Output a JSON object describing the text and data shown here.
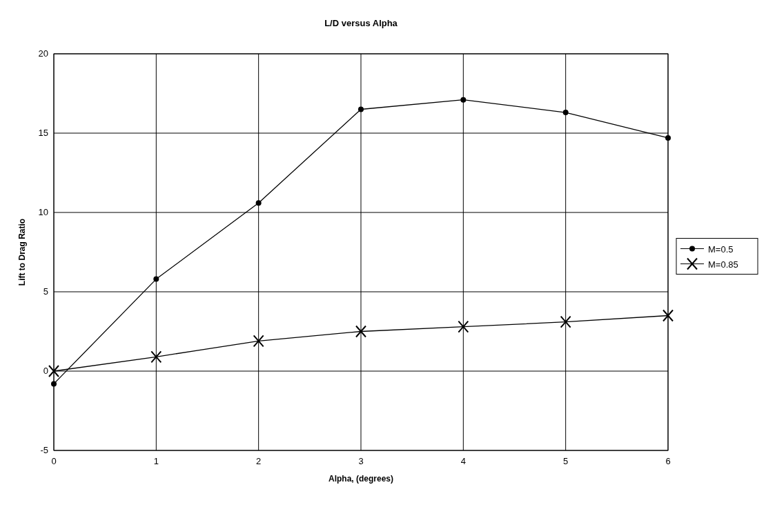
{
  "chart_data": {
    "type": "line",
    "title": "L/D versus Alpha",
    "xlabel": "Alpha, (degrees)",
    "ylabel": "Lift to Drag Ratio",
    "x": [
      0,
      1,
      2,
      3,
      4,
      5,
      6
    ],
    "xlim": [
      0,
      6
    ],
    "xticks": [
      0,
      1,
      2,
      3,
      4,
      5,
      6
    ],
    "ylim": [
      -5,
      20
    ],
    "yticks": [
      -5,
      0,
      5,
      10,
      15,
      20
    ],
    "grid": true,
    "legend": "right",
    "line_style": "solid",
    "series": [
      {
        "name": "M=0.5",
        "color": "#000000",
        "marker": "circle",
        "values": [
          -0.8,
          5.8,
          10.6,
          16.5,
          17.1,
          16.3,
          14.7
        ]
      },
      {
        "name": "M=0.85",
        "color": "#000000",
        "marker": "cross",
        "values": [
          0,
          0.9,
          1.9,
          2.5,
          2.8,
          3.1,
          3.5
        ]
      }
    ]
  }
}
